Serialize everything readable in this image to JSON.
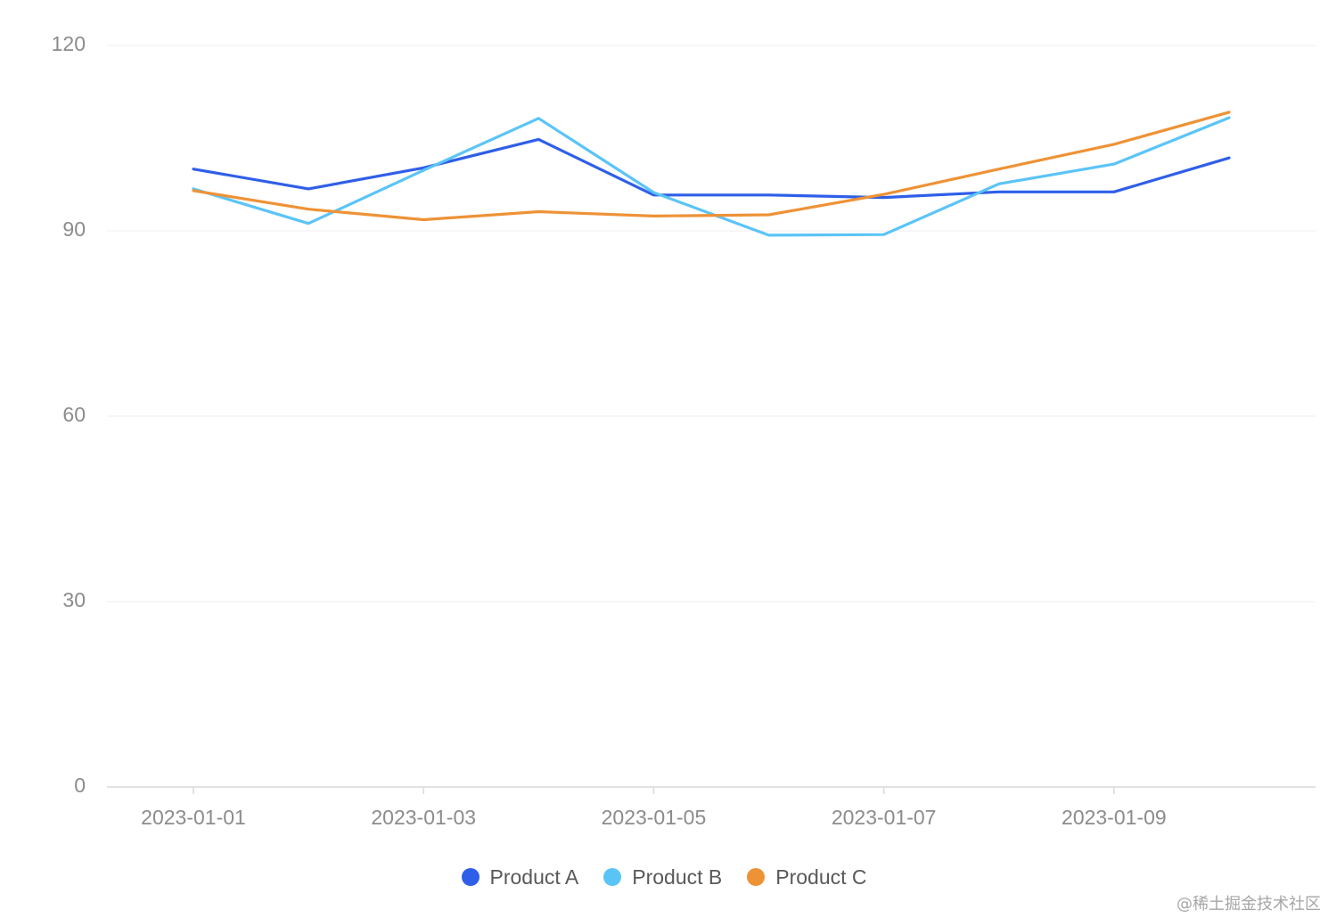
{
  "chart_data": {
    "type": "line",
    "title": "",
    "xlabel": "",
    "ylabel": "",
    "ylim": [
      0,
      120
    ],
    "y_ticks": [
      0,
      30,
      60,
      90,
      120
    ],
    "x": [
      "2023-01-01",
      "2023-01-02",
      "2023-01-03",
      "2023-01-04",
      "2023-01-05",
      "2023-01-06",
      "2023-01-07",
      "2023-01-08",
      "2023-01-09",
      "2023-01-10"
    ],
    "x_tick_labels": [
      "2023-01-01",
      "2023-01-03",
      "2023-01-05",
      "2023-01-07",
      "2023-01-09"
    ],
    "grid": true,
    "legend_position": "bottom-center",
    "series": [
      {
        "name": "Product A",
        "color": "#2f5fe8",
        "values": [
          100,
          96.8,
          100.2,
          104.8,
          95.8,
          95.8,
          95.4,
          96.3,
          96.3,
          101.8
        ]
      },
      {
        "name": "Product B",
        "color": "#5bc4f7",
        "values": [
          96.8,
          91.2,
          99.8,
          108.2,
          96.2,
          89.3,
          89.4,
          97.6,
          100.8,
          108.3
        ]
      },
      {
        "name": "Product C",
        "color": "#ee9236",
        "values": [
          96.5,
          93.5,
          91.8,
          93.1,
          92.4,
          92.6,
          95.9,
          100,
          104,
          109.2
        ]
      }
    ]
  },
  "watermark": "@稀土掘金技术社区"
}
